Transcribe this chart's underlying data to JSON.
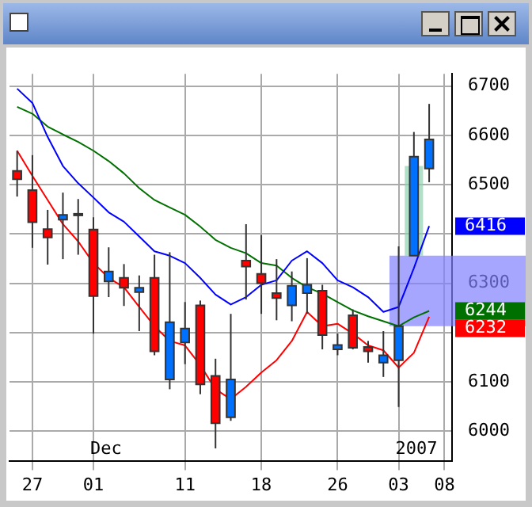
{
  "chart_data": {
    "type": "candlestick",
    "categories": [
      null,
      "27",
      null,
      null,
      null,
      "01",
      null,
      null,
      null,
      null,
      null,
      "11",
      null,
      null,
      null,
      null,
      "18",
      null,
      null,
      null,
      null,
      "26",
      null,
      null,
      null,
      "03",
      null,
      null,
      "08"
    ],
    "ohlc": [
      [
        6528,
        6569,
        6476,
        6511
      ],
      [
        6489,
        6560,
        6372,
        6424
      ],
      [
        6410,
        6449,
        6338,
        6393
      ],
      [
        6429,
        6484,
        6349,
        6439
      ],
      [
        6441,
        6471,
        6358,
        6441
      ],
      [
        6409,
        6434,
        6198,
        6274
      ],
      [
        6304,
        6373,
        6272,
        6324
      ],
      [
        6311,
        6339,
        6254,
        6291
      ],
      [
        6282,
        6316,
        6203,
        6291
      ],
      [
        6311,
        6358,
        6154,
        6162
      ],
      [
        6105,
        6363,
        6085,
        6221
      ],
      [
        6180,
        6262,
        6136,
        6208
      ],
      [
        6255,
        6265,
        6075,
        6095
      ],
      [
        6112,
        6147,
        5965,
        6016
      ],
      [
        6028,
        6238,
        6021,
        6105
      ],
      [
        6346,
        6420,
        6267,
        6334
      ],
      [
        6319,
        6398,
        6238,
        6300
      ],
      [
        6280,
        6349,
        6225,
        6270
      ],
      [
        6255,
        6324,
        6223,
        6295
      ],
      [
        6280,
        6351,
        6238,
        6297
      ],
      [
        6285,
        6297,
        6166,
        6195
      ],
      [
        6166,
        6198,
        6154,
        6175
      ],
      [
        6235,
        6247,
        6166,
        6169
      ],
      [
        6171,
        6183,
        6139,
        6162
      ],
      [
        6139,
        6203,
        6110,
        6154
      ],
      [
        6144,
        6375,
        6049,
        6213
      ],
      [
        6356,
        6607,
        6356,
        6557
      ],
      [
        6533,
        6664,
        6505,
        6592
      ],
      null
    ],
    "colors": [
      "#ff0000",
      "#ff0000",
      "#ff0000",
      "#0070ff",
      "#0070ff",
      "#ff0000",
      "#0070ff",
      "#ff0000",
      "#0070ff",
      "#ff0000",
      "#0070ff",
      "#0070ff",
      "#ff0000",
      "#ff0000",
      "#0070ff",
      "#ff0000",
      "#ff0000",
      "#ff0000",
      "#0070ff",
      "#0070ff",
      "#ff0000",
      "#0070ff",
      "#ff0000",
      "#ff0000",
      "#0070ff",
      "#0070ff",
      "#0070ff",
      "#0070ff",
      null
    ],
    "series": [
      {
        "type": "line",
        "color": "#0000ff",
        "values": [
          6695,
          6666,
          6597,
          6538,
          6503,
          6474,
          6444,
          6425,
          6395,
          6365,
          6356,
          6341,
          6311,
          6277,
          6257,
          6272,
          6297,
          6306,
          6346,
          6365,
          6341,
          6306,
          6292,
          6272,
          6242,
          6252,
          6331,
          6416,
          null
        ]
      },
      {
        "type": "line",
        "color": "#007000",
        "values": [
          6658,
          6644,
          6618,
          6602,
          6587,
          6569,
          6548,
          6523,
          6493,
          6469,
          6454,
          6439,
          6415,
          6388,
          6372,
          6361,
          6341,
          6336,
          6311,
          6292,
          6279,
          6262,
          6245,
          6233,
          6223,
          6213,
          6231,
          6244,
          null
        ]
      },
      {
        "type": "line",
        "color": "#ff0000",
        "values": [
          6569,
          6518,
          6469,
          6420,
          6385,
          6341,
          6311,
          6292,
          6252,
          6213,
          6183,
          6174,
          6134,
          6085,
          6065,
          6090,
          6119,
          6144,
          6183,
          6242,
          6213,
          6218,
          6198,
          6174,
          6164,
          6129,
          6159,
          6232,
          null
        ]
      }
    ],
    "ylim": [
      5940,
      6725
    ],
    "yticks": [
      6000,
      6100,
      {
        "value": 6200,
        "label": null
      },
      6300,
      {
        "value": 6400,
        "label": null
      },
      6500,
      6600,
      6700
    ],
    "grid": true,
    "legend": false,
    "bands": [
      {
        "axis": "y",
        "from": 6356,
        "to": 6538,
        "color": "#8fd4b0"
      },
      {
        "axis": "y",
        "from": 6213,
        "to": 6356,
        "color": "#8080ff"
      }
    ],
    "annotations": [
      "6416",
      "6244",
      "6232",
      "Dec",
      "2007"
    ]
  }
}
